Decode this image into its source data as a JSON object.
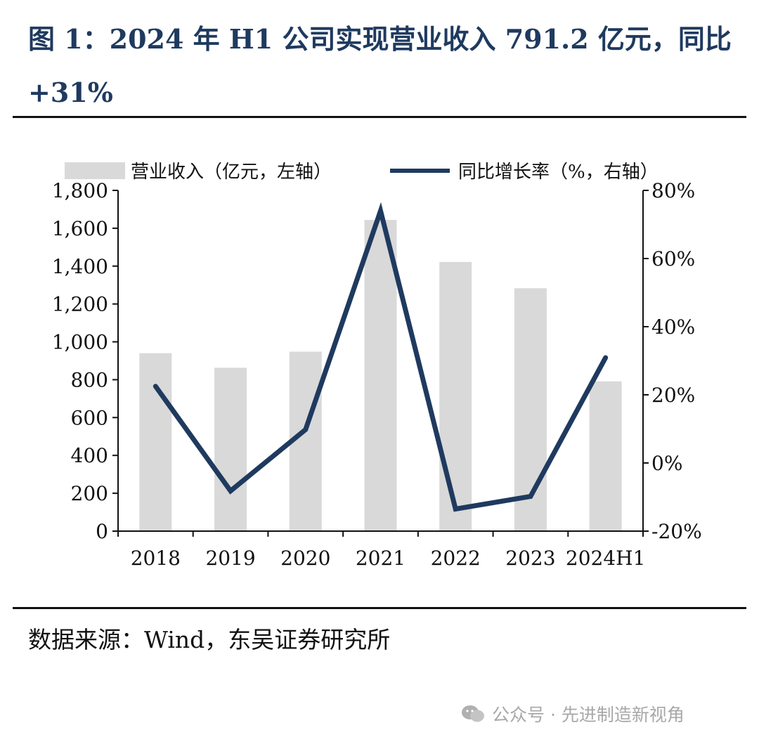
{
  "figure": {
    "title": "图 1：2024 年 H1 公司实现营业收入 791.2 亿元，同比+31%",
    "source": "数据来源：Wind，东吴证券研究所",
    "watermark": "公众号 · 先进制造新视角"
  },
  "chart_data": {
    "type": "bar",
    "categories": [
      "2018",
      "2019",
      "2020",
      "2021",
      "2022",
      "2023",
      "2024H1"
    ],
    "series": [
      {
        "name": "营业收入（亿元，左轴）",
        "type": "bar",
        "axis": "left",
        "color": "#d9d9d9",
        "values": [
          940,
          863,
          948,
          1644,
          1422,
          1283,
          791.2
        ]
      },
      {
        "name": "同比增长率（%，右轴）",
        "type": "line",
        "axis": "right",
        "color": "#1f3a5f",
        "values": [
          22.5,
          -8.2,
          9.8,
          74.0,
          -13.5,
          -9.8,
          30.9
        ]
      }
    ],
    "left_axis": {
      "ylim": [
        0,
        1800
      ],
      "ticks": [
        0,
        200,
        400,
        600,
        800,
        1000,
        1200,
        1400,
        1600,
        1800
      ],
      "tick_labels": [
        "0",
        "200",
        "400",
        "600",
        "800",
        "1,000",
        "1,200",
        "1,400",
        "1,600",
        "1,800"
      ]
    },
    "right_axis": {
      "ylim": [
        -20,
        80
      ],
      "ticks": [
        -20,
        0,
        20,
        40,
        60,
        80
      ],
      "tick_labels": [
        "-20%",
        "0%",
        "20%",
        "40%",
        "60%",
        "80%"
      ]
    },
    "legend_position": "top",
    "grid": false
  }
}
